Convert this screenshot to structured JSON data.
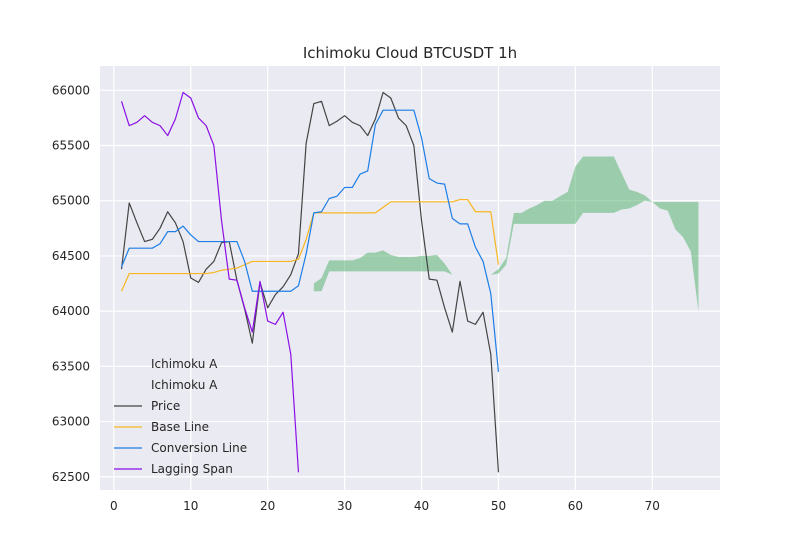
{
  "chart_data": {
    "type": "line",
    "title": "Ichimoku Cloud BTCUSDT 1h",
    "xlabel": "",
    "ylabel": "",
    "xlim": [
      -1.8,
      78.8
    ],
    "ylim": [
      62380,
      66220
    ],
    "x_ticks": [
      0,
      10,
      20,
      30,
      40,
      50,
      60,
      70
    ],
    "y_ticks": [
      62500,
      63000,
      63500,
      64000,
      64500,
      65000,
      65500,
      66000
    ],
    "grid": true,
    "legend_position": "lower-left",
    "legend": [
      "Ichimoku A",
      "Ichimoku A",
      "Price",
      "Base Line",
      "Conversion Line",
      "Lagging Span"
    ],
    "series": [
      {
        "name": "Price",
        "color": "#444444",
        "x": [
          1,
          2,
          3,
          4,
          5,
          6,
          7,
          8,
          9,
          10,
          11,
          12,
          13,
          14,
          15,
          16,
          17,
          18,
          19,
          20,
          21,
          22,
          23,
          24,
          25,
          26,
          27,
          28,
          29,
          30,
          31,
          32,
          33,
          34,
          35,
          36,
          37,
          38,
          39,
          40,
          41,
          42,
          43,
          44,
          45,
          46,
          47,
          48,
          49,
          50
        ],
        "values": [
          64380,
          64980,
          64800,
          64630,
          64650,
          64750,
          64900,
          64800,
          64630,
          64300,
          64260,
          64380,
          64450,
          64620,
          64630,
          64280,
          64020,
          63710,
          64260,
          64030,
          64150,
          64220,
          64330,
          64520,
          65520,
          65880,
          65900,
          65680,
          65720,
          65770,
          65710,
          65680,
          65590,
          65740,
          65980,
          65930,
          65750,
          65680,
          65500,
          64820,
          64290,
          64280,
          64030,
          63810,
          64270,
          63910,
          63880,
          63990,
          63610,
          62540
        ]
      },
      {
        "name": "Base Line",
        "color": "#f8b621",
        "x": [
          1,
          2,
          3,
          4,
          5,
          6,
          7,
          8,
          9,
          10,
          11,
          12,
          13,
          14,
          15,
          16,
          17,
          18,
          19,
          20,
          21,
          22,
          23,
          24,
          25,
          26,
          27,
          28,
          29,
          30,
          31,
          32,
          33,
          34,
          35,
          36,
          37,
          38,
          39,
          40,
          41,
          42,
          43,
          44,
          45,
          46,
          47,
          48,
          49,
          50
        ],
        "values": [
          64180,
          64340,
          64340,
          64340,
          64340,
          64340,
          64340,
          64340,
          64340,
          64340,
          64340,
          64340,
          64350,
          64370,
          64380,
          64390,
          64420,
          64450,
          64450,
          64450,
          64450,
          64450,
          64450,
          64470,
          64650,
          64890,
          64890,
          64890,
          64890,
          64890,
          64890,
          64890,
          64890,
          64890,
          64940,
          64990,
          64990,
          64990,
          64990,
          64990,
          64990,
          64990,
          64990,
          64990,
          65010,
          65010,
          64900,
          64900,
          64900,
          64420
        ]
      },
      {
        "name": "Conversion Line",
        "color": "#1c7ee6",
        "x": [
          1,
          2,
          3,
          4,
          5,
          6,
          7,
          8,
          9,
          10,
          11,
          12,
          13,
          14,
          15,
          16,
          17,
          18,
          19,
          20,
          21,
          22,
          23,
          24,
          25,
          26,
          27,
          28,
          29,
          30,
          31,
          32,
          33,
          34,
          35,
          36,
          37,
          38,
          39,
          40,
          41,
          42,
          43,
          44,
          45,
          46,
          47,
          48,
          49,
          50
        ],
        "values": [
          64400,
          64570,
          64570,
          64570,
          64570,
          64610,
          64720,
          64720,
          64770,
          64690,
          64630,
          64630,
          64630,
          64630,
          64630,
          64630,
          64450,
          64180,
          64180,
          64180,
          64180,
          64180,
          64180,
          64230,
          64520,
          64890,
          64900,
          65020,
          65040,
          65120,
          65120,
          65240,
          65270,
          65690,
          65820,
          65820,
          65820,
          65820,
          65820,
          65570,
          65200,
          65160,
          65150,
          64840,
          64790,
          64790,
          64580,
          64450,
          64160,
          63450
        ]
      },
      {
        "name": "Lagging Span",
        "color": "#8b0fe6",
        "x": [
          1,
          2,
          3,
          4,
          5,
          6,
          7,
          8,
          9,
          10,
          11,
          12,
          13,
          14,
          15,
          16,
          17,
          18,
          19,
          20,
          21,
          22,
          23,
          24
        ],
        "values": [
          65900,
          65680,
          65710,
          65770,
          65710,
          65680,
          65590,
          65740,
          65980,
          65930,
          65750,
          65680,
          65500,
          64820,
          64290,
          64280,
          64030,
          63810,
          64270,
          63910,
          63880,
          63990,
          63610,
          62540
        ]
      }
    ],
    "cloud": {
      "bullish_color": "#4caf68",
      "bearish_color": "#e57f8b",
      "x": [
        26,
        27,
        28,
        29,
        30,
        31,
        32,
        33,
        34,
        35,
        36,
        37,
        38,
        39,
        40,
        41,
        42,
        43,
        44,
        45,
        46,
        47,
        48,
        49,
        50,
        51,
        52,
        53,
        54,
        55,
        56,
        57,
        58,
        59,
        60,
        61,
        62,
        63,
        64,
        65,
        66,
        67,
        68,
        69,
        70,
        71,
        72,
        73,
        74,
        75,
        76
      ],
      "span_a": [
        64250,
        64300,
        64460,
        64460,
        64460,
        64460,
        64480,
        64530,
        64530,
        64550,
        64510,
        64490,
        64490,
        64490,
        64500,
        64500,
        64510,
        64430,
        64330,
        64330,
        64330,
        64330,
        64330,
        64330,
        64380,
        64480,
        64890,
        64890,
        64930,
        64960,
        65000,
        65000,
        65040,
        65080,
        65310,
        65400,
        65400,
        65400,
        65400,
        65400,
        65250,
        65100,
        65080,
        65050,
        64990,
        64990,
        64990,
        64990,
        64990,
        64990,
        64990
      ],
      "span_b": [
        64180,
        64180,
        64360,
        64360,
        64360,
        64360,
        64360,
        64360,
        64360,
        64360,
        64360,
        64360,
        64360,
        64360,
        64360,
        64360,
        64360,
        64360,
        64330,
        64330,
        64330,
        64330,
        64330,
        64330,
        64340,
        64420,
        64790,
        64790,
        64790,
        64790,
        64790,
        64790,
        64790,
        64790,
        64790,
        64890,
        64890,
        64890,
        64890,
        64890,
        64920,
        64930,
        64960,
        65000,
        64990,
        64930,
        64910,
        64740,
        64670,
        64540,
        64000
      ]
    }
  }
}
